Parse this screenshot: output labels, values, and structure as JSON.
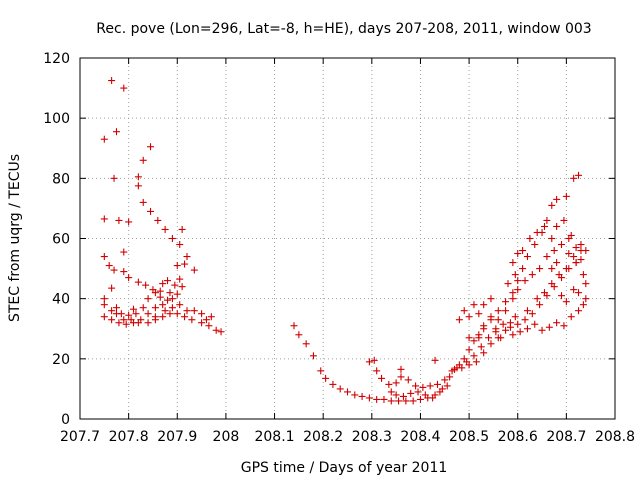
{
  "chart_data": {
    "type": "scatter",
    "title": "Rec. pove (Lon=296, Lat=-8, h=HE), days 207-208, 2011, window 003",
    "xlabel": "GPS time / Days of year 2011",
    "ylabel": "STEC from uqrg / TECUs",
    "xlim": [
      207.7,
      208.8
    ],
    "ylim": [
      0,
      120
    ],
    "xticks": [
      "207.7",
      "207.8",
      "207.9",
      "208",
      "208.1",
      "208.2",
      "208.3",
      "208.4",
      "208.5",
      "208.6",
      "208.7",
      "208.8"
    ],
    "yticks": [
      "0",
      "20",
      "40",
      "60",
      "80",
      "100",
      "120"
    ],
    "grid": true,
    "marker": "+",
    "color": "#d00000",
    "series": [
      {
        "points": [
          [
            207.75,
            93
          ],
          [
            207.77,
            80
          ],
          [
            207.78,
            66
          ],
          [
            207.765,
            112.5
          ],
          [
            207.775,
            95.5
          ],
          [
            207.79,
            110
          ],
          [
            207.82,
            80.5
          ],
          [
            207.83,
            86
          ],
          [
            207.845,
            90.5
          ],
          [
            207.82,
            77.5
          ],
          [
            207.83,
            72
          ],
          [
            207.845,
            69
          ],
          [
            207.86,
            66
          ],
          [
            207.875,
            63
          ],
          [
            207.89,
            60
          ],
          [
            207.905,
            58
          ],
          [
            207.91,
            63
          ],
          [
            207.92,
            54
          ],
          [
            207.8,
            65.5
          ],
          [
            207.79,
            55.5
          ],
          [
            207.75,
            66.5
          ],
          [
            207.75,
            54
          ],
          [
            207.76,
            51
          ],
          [
            207.77,
            49.5
          ],
          [
            207.79,
            49
          ],
          [
            207.8,
            47
          ],
          [
            207.82,
            45.5
          ],
          [
            207.835,
            44.5
          ],
          [
            207.85,
            43
          ],
          [
            207.865,
            42.5
          ],
          [
            207.885,
            42
          ],
          [
            207.9,
            41.5
          ],
          [
            207.91,
            44
          ],
          [
            207.9,
            51
          ],
          [
            207.915,
            51.5
          ],
          [
            207.935,
            49.5
          ],
          [
            207.75,
            40
          ],
          [
            207.75,
            38
          ],
          [
            207.765,
            36
          ],
          [
            207.775,
            35
          ],
          [
            207.79,
            33
          ],
          [
            207.805,
            33
          ],
          [
            207.82,
            32
          ],
          [
            207.84,
            32
          ],
          [
            207.855,
            33
          ],
          [
            207.87,
            34
          ],
          [
            207.885,
            35
          ],
          [
            207.9,
            35
          ],
          [
            207.915,
            34
          ],
          [
            207.93,
            33
          ],
          [
            207.95,
            32
          ],
          [
            207.965,
            31
          ],
          [
            207.98,
            29.5
          ],
          [
            207.99,
            29
          ],
          [
            207.75,
            34
          ],
          [
            207.765,
            33
          ],
          [
            207.78,
            32
          ],
          [
            207.795,
            31.5
          ],
          [
            207.81,
            32
          ],
          [
            207.825,
            33
          ],
          [
            207.84,
            35
          ],
          [
            207.855,
            37
          ],
          [
            207.87,
            38
          ],
          [
            207.88,
            39.5
          ],
          [
            207.89,
            40
          ],
          [
            207.905,
            38
          ],
          [
            207.92,
            36
          ],
          [
            207.935,
            36
          ],
          [
            207.95,
            35
          ],
          [
            207.97,
            34
          ],
          [
            207.765,
            43.5
          ],
          [
            207.775,
            37
          ],
          [
            207.785,
            35
          ],
          [
            207.8,
            34.5
          ],
          [
            207.815,
            35
          ],
          [
            207.83,
            37
          ],
          [
            207.84,
            40
          ],
          [
            207.855,
            42
          ],
          [
            207.865,
            40.5
          ],
          [
            207.87,
            45
          ],
          [
            207.88,
            46
          ],
          [
            207.895,
            44.5
          ],
          [
            207.905,
            46.5
          ],
          [
            207.875,
            36
          ],
          [
            207.89,
            37
          ],
          [
            207.96,
            33
          ],
          [
            207.855,
            34
          ],
          [
            207.81,
            36.5
          ],
          [
            208.14,
            31
          ],
          [
            208.15,
            28
          ],
          [
            208.165,
            25
          ],
          [
            208.18,
            21
          ],
          [
            208.195,
            16
          ],
          [
            208.205,
            13.5
          ],
          [
            208.22,
            11.5
          ],
          [
            208.235,
            10
          ],
          [
            208.25,
            9
          ],
          [
            208.265,
            8
          ],
          [
            208.28,
            7.5
          ],
          [
            208.295,
            7
          ],
          [
            208.31,
            6.5
          ],
          [
            208.325,
            6.5
          ],
          [
            208.34,
            6
          ],
          [
            208.355,
            6
          ],
          [
            208.37,
            6
          ],
          [
            208.385,
            6
          ],
          [
            208.4,
            6.5
          ],
          [
            208.415,
            7
          ],
          [
            208.43,
            8
          ],
          [
            208.445,
            10
          ],
          [
            208.46,
            14
          ],
          [
            208.475,
            17
          ],
          [
            208.49,
            20
          ],
          [
            208.5,
            23
          ],
          [
            208.51,
            26
          ],
          [
            208.52,
            28
          ],
          [
            208.53,
            30
          ],
          [
            208.545,
            33
          ],
          [
            208.56,
            36
          ],
          [
            208.575,
            39
          ],
          [
            208.59,
            42
          ],
          [
            208.6,
            46
          ],
          [
            208.61,
            50
          ],
          [
            208.62,
            54
          ],
          [
            208.635,
            58
          ],
          [
            208.65,
            62
          ],
          [
            208.66,
            66
          ],
          [
            208.67,
            71
          ],
          [
            208.68,
            73
          ],
          [
            208.7,
            74
          ],
          [
            208.715,
            80
          ],
          [
            208.725,
            81
          ],
          [
            208.295,
            19
          ],
          [
            208.305,
            19.5
          ],
          [
            208.31,
            16
          ],
          [
            208.32,
            13.5
          ],
          [
            208.335,
            11.5
          ],
          [
            208.35,
            12
          ],
          [
            208.36,
            14
          ],
          [
            208.36,
            16.5
          ],
          [
            208.375,
            13
          ],
          [
            208.39,
            11
          ],
          [
            208.405,
            10.5
          ],
          [
            208.42,
            11
          ],
          [
            208.435,
            11.5
          ],
          [
            208.43,
            19.5
          ],
          [
            208.45,
            13
          ],
          [
            208.465,
            16
          ],
          [
            208.48,
            18
          ],
          [
            208.495,
            19
          ],
          [
            208.51,
            21
          ],
          [
            208.525,
            24
          ],
          [
            208.54,
            27
          ],
          [
            208.555,
            30
          ],
          [
            208.57,
            31.5
          ],
          [
            208.585,
            32
          ],
          [
            208.6,
            31.5
          ],
          [
            208.615,
            33
          ],
          [
            208.63,
            35
          ],
          [
            208.645,
            38
          ],
          [
            208.66,
            41
          ],
          [
            208.675,
            44
          ],
          [
            208.69,
            47
          ],
          [
            208.705,
            50
          ],
          [
            208.72,
            52
          ],
          [
            208.73,
            53
          ],
          [
            208.34,
            9
          ],
          [
            208.35,
            8
          ],
          [
            208.365,
            7.5
          ],
          [
            208.38,
            8.5
          ],
          [
            208.395,
            9
          ],
          [
            208.41,
            8
          ],
          [
            208.425,
            7
          ],
          [
            208.44,
            9
          ],
          [
            208.455,
            11
          ],
          [
            208.47,
            16.5
          ],
          [
            208.485,
            17
          ],
          [
            208.5,
            18
          ],
          [
            208.515,
            19
          ],
          [
            208.53,
            22
          ],
          [
            208.545,
            25
          ],
          [
            208.56,
            27
          ],
          [
            208.575,
            29.5
          ],
          [
            208.59,
            28
          ],
          [
            208.605,
            29
          ],
          [
            208.62,
            30
          ],
          [
            208.635,
            31.5
          ],
          [
            208.65,
            29.5
          ],
          [
            208.665,
            30.5
          ],
          [
            208.68,
            32
          ],
          [
            208.695,
            31
          ],
          [
            208.71,
            34
          ],
          [
            208.725,
            36
          ],
          [
            208.735,
            38
          ],
          [
            208.48,
            33
          ],
          [
            208.49,
            36
          ],
          [
            208.5,
            34
          ],
          [
            208.51,
            38
          ],
          [
            208.52,
            35
          ],
          [
            208.53,
            38
          ],
          [
            208.545,
            40
          ],
          [
            208.545,
            34
          ],
          [
            208.56,
            33
          ],
          [
            208.575,
            36
          ],
          [
            208.59,
            40
          ],
          [
            208.6,
            43
          ],
          [
            208.615,
            46
          ],
          [
            208.63,
            48
          ],
          [
            208.645,
            50
          ],
          [
            208.66,
            54
          ],
          [
            208.675,
            56
          ],
          [
            208.69,
            58
          ],
          [
            208.705,
            55
          ],
          [
            208.72,
            52
          ],
          [
            208.735,
            48
          ],
          [
            208.74,
            45
          ],
          [
            208.5,
            27
          ],
          [
            208.52,
            27
          ],
          [
            208.53,
            31
          ],
          [
            208.555,
            29
          ],
          [
            208.565,
            27
          ],
          [
            208.585,
            30.5
          ],
          [
            208.595,
            34
          ],
          [
            208.62,
            36
          ],
          [
            208.64,
            40
          ],
          [
            208.655,
            42
          ],
          [
            208.67,
            45
          ],
          [
            208.685,
            48
          ],
          [
            208.7,
            50
          ],
          [
            208.715,
            54
          ],
          [
            208.73,
            58
          ],
          [
            208.74,
            56
          ],
          [
            208.58,
            45
          ],
          [
            208.595,
            48
          ],
          [
            208.61,
            56
          ],
          [
            208.625,
            60
          ],
          [
            208.64,
            62
          ],
          [
            208.655,
            64
          ],
          [
            208.67,
            60
          ],
          [
            208.68,
            64
          ],
          [
            208.695,
            66
          ],
          [
            208.71,
            61
          ],
          [
            208.72,
            57
          ],
          [
            208.73,
            56
          ],
          [
            208.59,
            52
          ],
          [
            208.6,
            55
          ],
          [
            208.67,
            50
          ],
          [
            208.68,
            52
          ],
          [
            208.69,
            41
          ],
          [
            208.7,
            39
          ],
          [
            208.715,
            43
          ],
          [
            208.725,
            42
          ],
          [
            208.74,
            40
          ],
          [
            208.705,
            60
          ]
        ]
      }
    ]
  }
}
